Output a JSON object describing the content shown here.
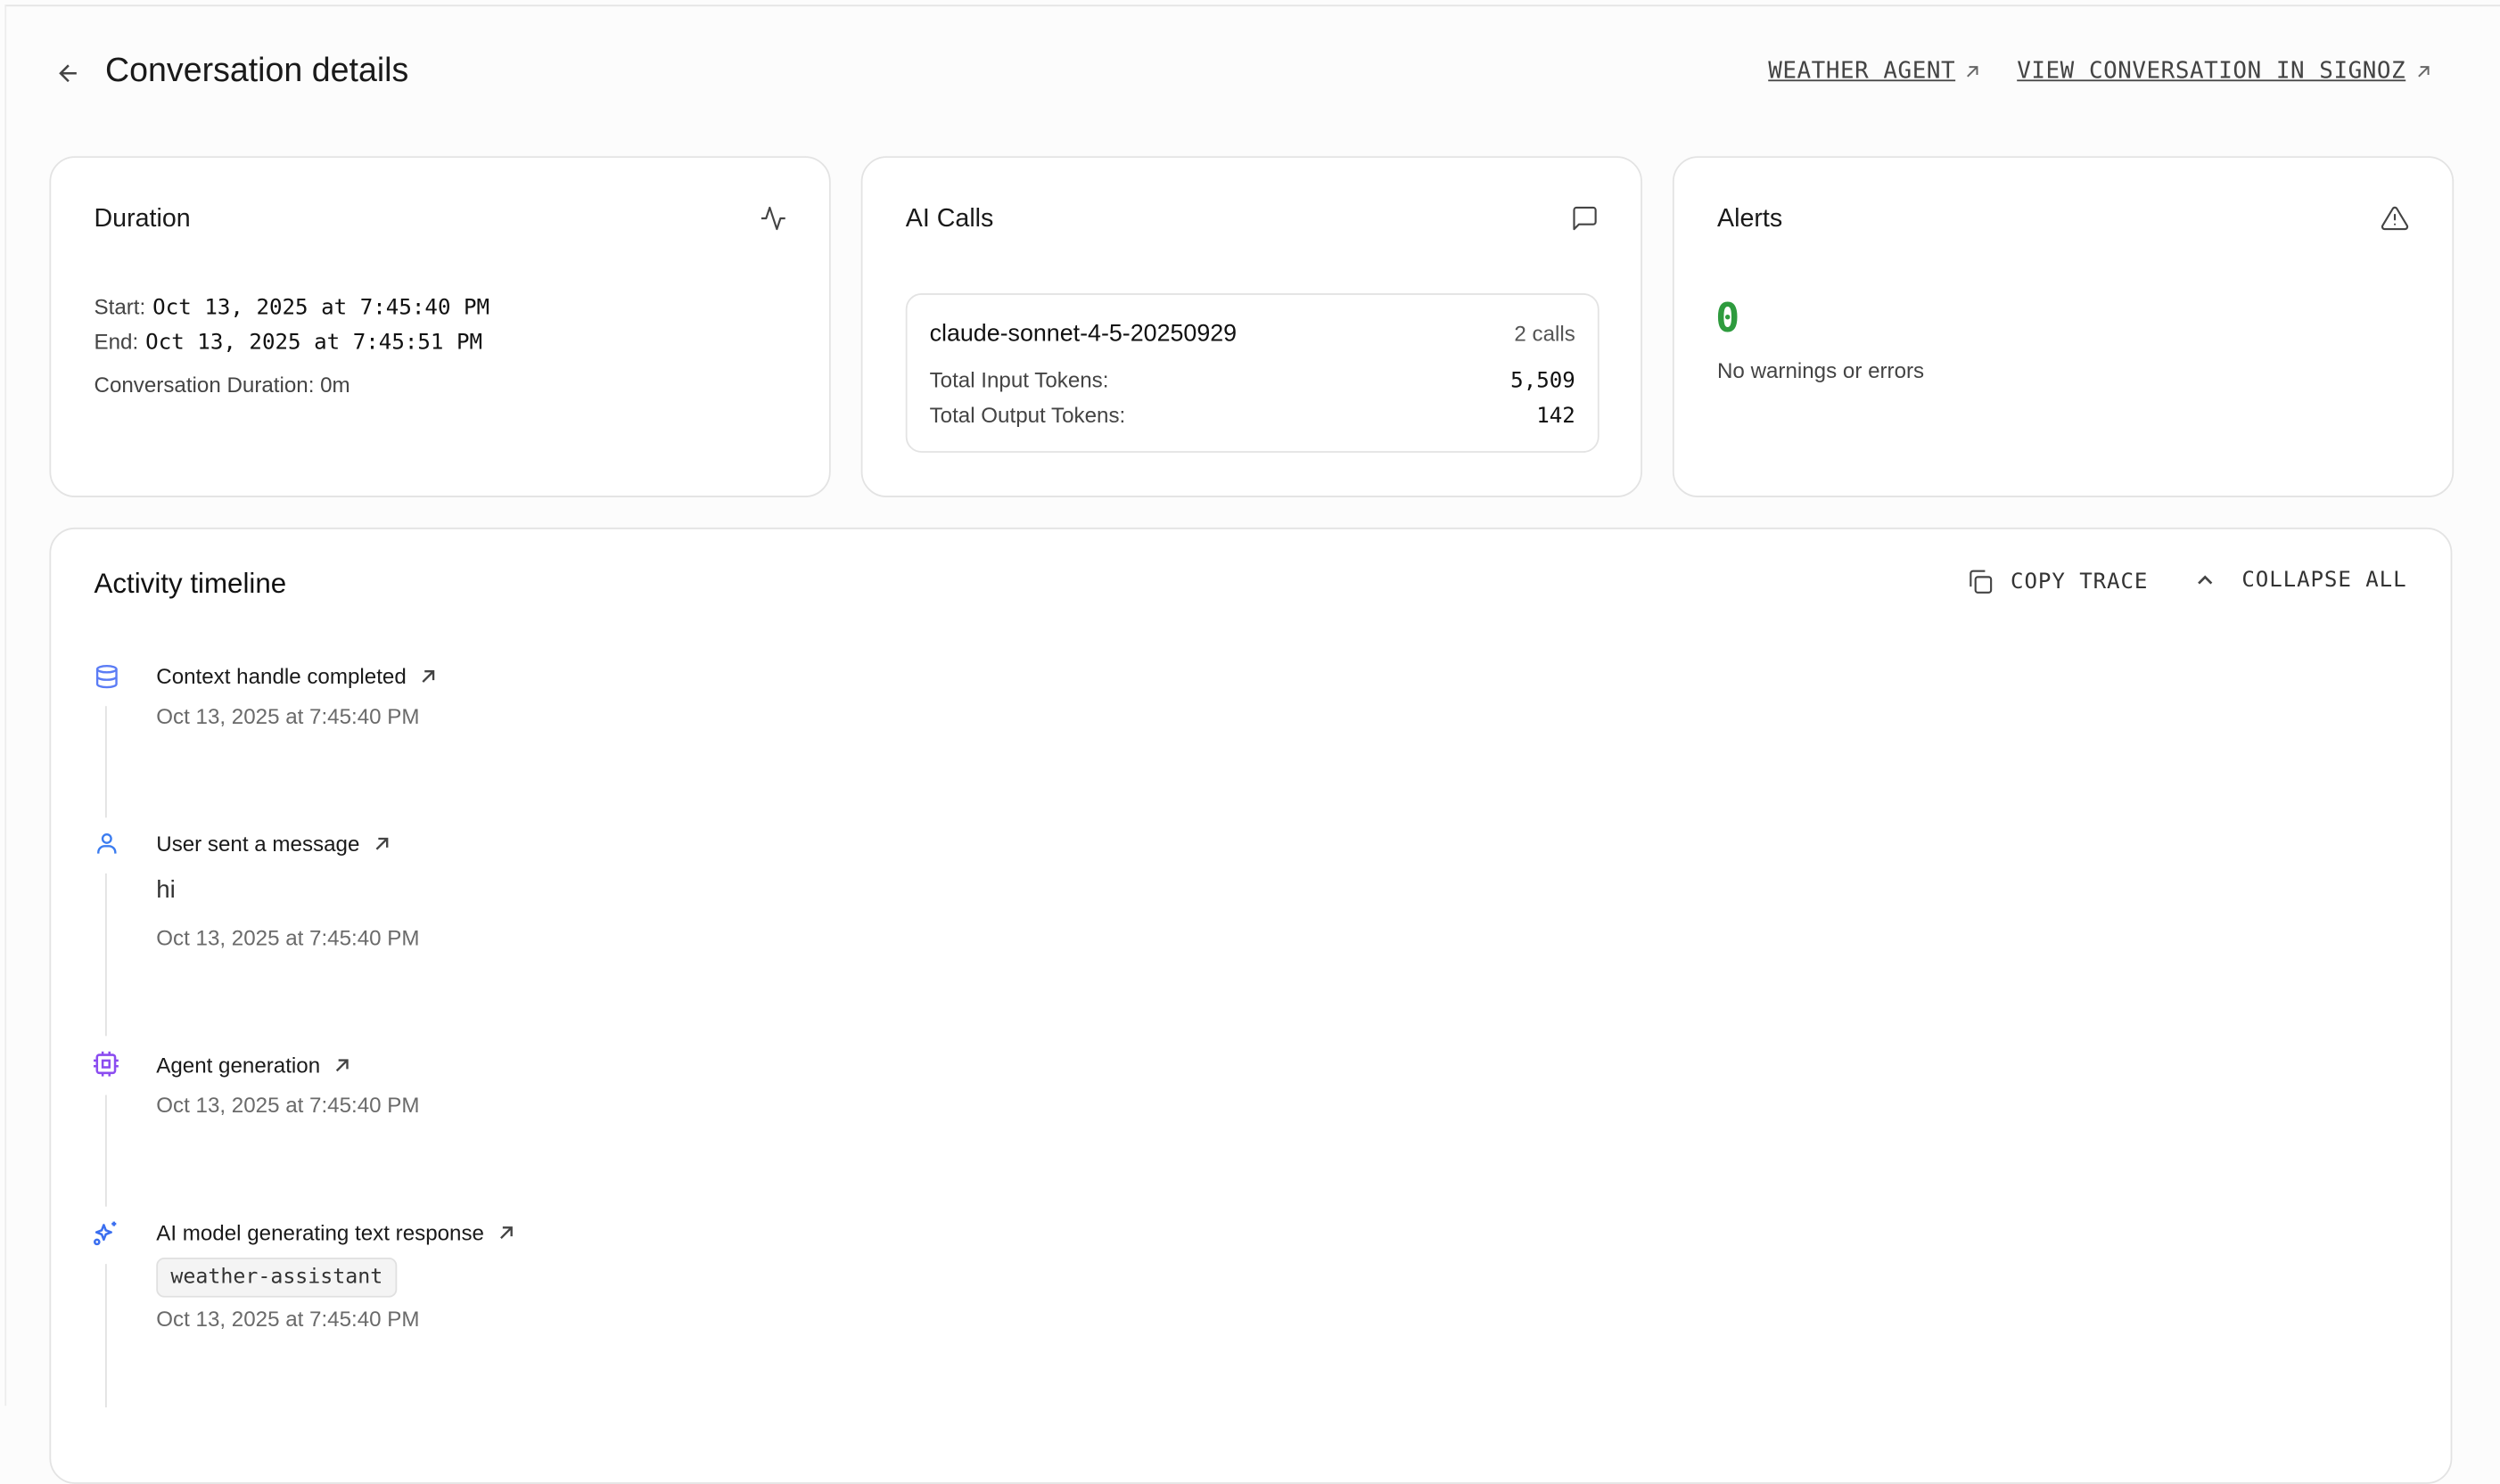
{
  "header": {
    "title": "Conversation details",
    "back_icon": "arrow-left-icon",
    "links": [
      {
        "label": "WEATHER AGENT",
        "icon": "arrow-up-right-icon"
      },
      {
        "label": "VIEW CONVERSATION IN SIGNOZ",
        "icon": "arrow-up-right-icon"
      }
    ]
  },
  "duration": {
    "title": "Duration",
    "icon": "activity-icon",
    "start_label": "Start:",
    "start_value": "Oct 13, 2025 at 7:45:40 PM",
    "end_label": "End:",
    "end_value": "Oct 13, 2025 at 7:45:51 PM",
    "conversation_duration": "Conversation Duration: 0m"
  },
  "ai_calls": {
    "title": "AI Calls",
    "icon": "message-square-icon",
    "models": [
      {
        "name": "claude-sonnet-4-5-20250929",
        "calls": "2 calls",
        "input_label": "Total Input Tokens:",
        "input_tokens": "5,509",
        "output_label": "Total Output Tokens:",
        "output_tokens": "142"
      }
    ]
  },
  "alerts": {
    "title": "Alerts",
    "icon": "alert-triangle-icon",
    "count": "0",
    "count_color": "#2e9b3e",
    "message": "No warnings or errors"
  },
  "timeline": {
    "title": "Activity timeline",
    "copy_label": "COPY TRACE",
    "collapse_label": "COLLAPSE ALL",
    "events": [
      {
        "title": "Context handle completed",
        "icon": "database-icon",
        "color": "#5b7cf5",
        "time": "Oct 13, 2025 at 7:45:40 PM"
      },
      {
        "title": "User sent a message",
        "icon": "user-icon",
        "color": "#3b7cf0",
        "message": "hi",
        "time": "Oct 13, 2025 at 7:45:40 PM"
      },
      {
        "title": "Agent generation",
        "icon": "cpu-icon",
        "color": "#8b4cf0",
        "time": "Oct 13, 2025 at 7:45:40 PM"
      },
      {
        "title": "AI model generating text response",
        "icon": "sparkles-icon",
        "color": "#3b6ff0",
        "tag": "weather-assistant",
        "time": "Oct 13, 2025 at 7:45:40 PM"
      }
    ]
  }
}
